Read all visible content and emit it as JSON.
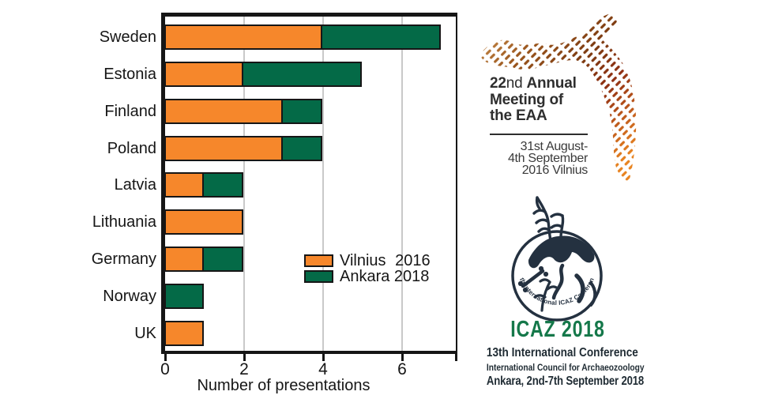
{
  "chart_data": {
    "type": "bar",
    "orientation": "horizontal",
    "stacked": true,
    "categories": [
      "Sweden",
      "Estonia",
      "Finland",
      "Poland",
      "Latvia",
      "Lithuania",
      "Germany",
      "Norway",
      "UK"
    ],
    "series": [
      {
        "name": "Vilnius 2016",
        "color": "#F6872B",
        "values": [
          4,
          2,
          3,
          3,
          1,
          2,
          1,
          0,
          1
        ]
      },
      {
        "name": "Ankara 2018",
        "color": "#046A47",
        "values": [
          3,
          3,
          1,
          1,
          1,
          0,
          1,
          1,
          0
        ]
      }
    ],
    "totals": [
      7,
      5,
      4,
      4,
      2,
      2,
      2,
      1,
      1
    ],
    "xlabel": "Number of presentations",
    "xticks": [
      0,
      2,
      4,
      6
    ],
    "xlim": [
      0,
      7.36
    ],
    "grid": true,
    "grid_color": "#C9C9C9",
    "bar_border_color": "#161616",
    "legend_position": "inside-right"
  },
  "eaa_logo": {
    "title": {
      "line1_num": "22",
      "line1_suffix": "nd",
      "line1_word": "Annual",
      "line2": "Meeting of",
      "line3": "the EAA"
    },
    "date_lines": [
      "31st August-",
      "4th September",
      "2016 Vilnius"
    ],
    "hatch_colors": [
      "#D9A15C",
      "#9A551C",
      "#7C3A10",
      "#8F2F12",
      "#C05B1B",
      "#E8831F"
    ]
  },
  "icaz_logo": {
    "circle_text": "13th International ICAZ Conference",
    "title": "ICAZ 2018",
    "subtitle1": "13th International Conference",
    "subtitle2": "International Council for Archaeozoology",
    "subtitle3": "Ankara, 2nd-7th September 2018",
    "title_color": "#15784A",
    "emblem_color": "#243140"
  }
}
